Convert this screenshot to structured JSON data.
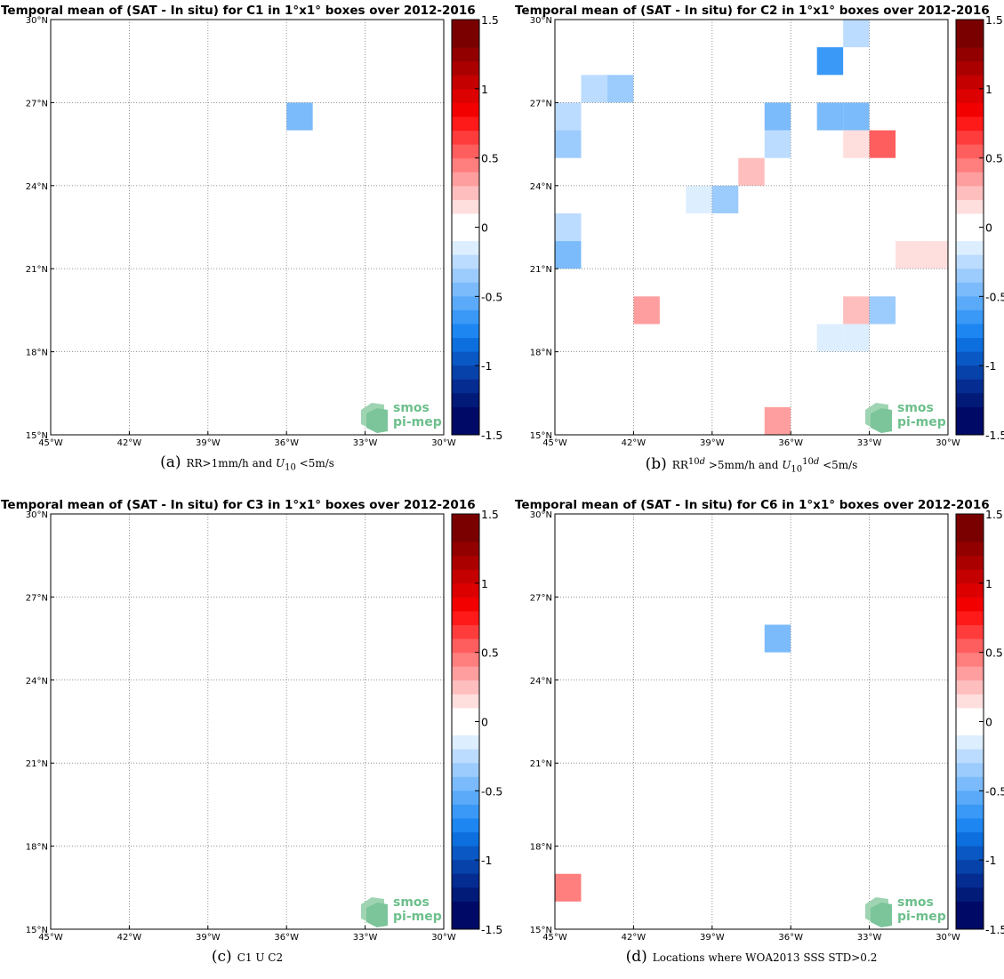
{
  "chart_data": [
    {
      "type": "heatmap",
      "id": "a",
      "title": "Temporal mean of (SAT - In situ) for C1 in 1°x1° boxes over 2012-2016",
      "caption_letter": "(a)",
      "caption_html": "RR&gt;1mm/h and <i>U</i><sub>10</sub> &lt;5m/s",
      "xlim": [
        -45,
        -30
      ],
      "ylim": [
        15,
        30
      ],
      "xtick_values": [
        -45,
        -42,
        -39,
        -36,
        -33,
        -30
      ],
      "xtick_labels": [
        "45°W",
        "42°W",
        "39°W",
        "36°W",
        "33°W",
        "30°W"
      ],
      "ytick_values": [
        15,
        18,
        21,
        24,
        27,
        30
      ],
      "ytick_labels": [
        "15°N",
        "18°N",
        "21°N",
        "24°N",
        "27°N",
        "30°N"
      ],
      "grid": true,
      "colorbar": {
        "range": [
          -1.5,
          1.5
        ],
        "tick_values": [
          1.5,
          1,
          0.5,
          0,
          -0.5,
          -1,
          -1.5
        ],
        "tick_labels": [
          "1.5",
          "1",
          "0.5",
          "0",
          "-0.5",
          "-1",
          "-1.5"
        ]
      },
      "cells": [
        {
          "lon": -36,
          "lat": 26,
          "value": -0.4
        }
      ],
      "logo": [
        "smos",
        "pi-mep"
      ]
    },
    {
      "type": "heatmap",
      "id": "b",
      "title": "Temporal mean of (SAT - In situ) for C2 in 1°x1° boxes over 2012-2016",
      "caption_letter": "(b)",
      "caption_html": "RR<sup>10<i>d</i></sup> &gt;5mm/h and <i>U</i><sub>10</sub><sup>10<i>d</i></sup> &lt;5m/s",
      "xlim": [
        -45,
        -30
      ],
      "ylim": [
        15,
        30
      ],
      "xtick_values": [
        -45,
        -42,
        -39,
        -36,
        -33,
        -30
      ],
      "xtick_labels": [
        "45°W",
        "42°W",
        "39°W",
        "36°W",
        "33°W",
        "30°W"
      ],
      "ytick_values": [
        15,
        18,
        21,
        24,
        27,
        30
      ],
      "ytick_labels": [
        "15°N",
        "18°N",
        "21°N",
        "24°N",
        "27°N",
        "30°N"
      ],
      "grid": true,
      "colorbar": {
        "range": [
          -1.5,
          1.5
        ],
        "tick_values": [
          1.5,
          1,
          0.5,
          0,
          -0.5,
          -1,
          -1.5
        ],
        "tick_labels": [
          "1.5",
          "1",
          "0.5",
          "0",
          "-0.5",
          "-1",
          "-1.5"
        ]
      },
      "cells": [
        {
          "lon": -34,
          "lat": 29,
          "value": -0.15
        },
        {
          "lon": -35,
          "lat": 28,
          "value": -0.55
        },
        {
          "lon": -44,
          "lat": 27,
          "value": -0.15
        },
        {
          "lon": -43,
          "lat": 27,
          "value": -0.25
        },
        {
          "lon": -45,
          "lat": 26,
          "value": -0.2
        },
        {
          "lon": -37,
          "lat": 26,
          "value": -0.35
        },
        {
          "lon": -35,
          "lat": 26,
          "value": -0.35
        },
        {
          "lon": -34,
          "lat": 26,
          "value": -0.35
        },
        {
          "lon": -45,
          "lat": 25,
          "value": -0.3
        },
        {
          "lon": -37,
          "lat": 25,
          "value": -0.2
        },
        {
          "lon": -34,
          "lat": 25,
          "value": 0.1
        },
        {
          "lon": -33,
          "lat": 25,
          "value": 0.45
        },
        {
          "lon": -38,
          "lat": 24,
          "value": 0.15
        },
        {
          "lon": -40,
          "lat": 23,
          "value": -0.1
        },
        {
          "lon": -39,
          "lat": 23,
          "value": -0.25
        },
        {
          "lon": -45,
          "lat": 22,
          "value": -0.15
        },
        {
          "lon": -45,
          "lat": 21,
          "value": -0.35
        },
        {
          "lon": -32,
          "lat": 21,
          "value": 0.1
        },
        {
          "lon": -31,
          "lat": 21,
          "value": 0.1
        },
        {
          "lon": -42,
          "lat": 19,
          "value": 0.3
        },
        {
          "lon": -34,
          "lat": 19,
          "value": 0.15
        },
        {
          "lon": -33,
          "lat": 19,
          "value": -0.3
        },
        {
          "lon": -35,
          "lat": 18,
          "value": -0.1
        },
        {
          "lon": -34,
          "lat": 18,
          "value": -0.1
        },
        {
          "lon": -37,
          "lat": 15,
          "value": 0.25
        }
      ],
      "logo": [
        "smos",
        "pi-mep"
      ]
    },
    {
      "type": "heatmap",
      "id": "c",
      "title": "Temporal mean of (SAT - In situ) for C3 in 1°x1° boxes over 2012-2016",
      "caption_letter": "(c)",
      "caption_html": "C1 U C2",
      "xlim": [
        -45,
        -30
      ],
      "ylim": [
        15,
        30
      ],
      "xtick_values": [
        -45,
        -42,
        -39,
        -36,
        -33,
        -30
      ],
      "xtick_labels": [
        "45°W",
        "42°W",
        "39°W",
        "36°W",
        "33°W",
        "30°W"
      ],
      "ytick_values": [
        15,
        18,
        21,
        24,
        27,
        30
      ],
      "ytick_labels": [
        "15°N",
        "18°N",
        "21°N",
        "24°N",
        "27°N",
        "30°N"
      ],
      "grid": true,
      "colorbar": {
        "range": [
          -1.5,
          1.5
        ],
        "tick_values": [
          1.5,
          1,
          0.5,
          0,
          -0.5,
          -1,
          -1.5
        ],
        "tick_labels": [
          "1.5",
          "1",
          "0.5",
          "0",
          "-0.5",
          "-1",
          "-1.5"
        ]
      },
      "cells": [],
      "logo": [
        "smos",
        "pi-mep"
      ]
    },
    {
      "type": "heatmap",
      "id": "d",
      "title": "Temporal mean of (SAT - In situ) for C6 in 1°x1° boxes over 2012-2016",
      "caption_letter": "(d)",
      "caption_html": "Locations where WOA2013 SSS STD&gt;0.2",
      "xlim": [
        -45,
        -30
      ],
      "ylim": [
        15,
        30
      ],
      "xtick_values": [
        -45,
        -42,
        -39,
        -36,
        -33,
        -30
      ],
      "xtick_labels": [
        "45°W",
        "42°W",
        "39°W",
        "36°W",
        "33°W",
        "30°W"
      ],
      "ytick_values": [
        15,
        18,
        21,
        24,
        27,
        30
      ],
      "ytick_labels": [
        "15°N",
        "18°N",
        "21°N",
        "24°N",
        "27°N",
        "30°N"
      ],
      "grid": true,
      "colorbar": {
        "range": [
          -1.5,
          1.5
        ],
        "tick_values": [
          1.5,
          1,
          0.5,
          0,
          -0.5,
          -1,
          -1.5
        ],
        "tick_labels": [
          "1.5",
          "1",
          "0.5",
          "0",
          "-0.5",
          "-1",
          "-1.5"
        ]
      },
      "cells": [
        {
          "lon": -37,
          "lat": 25,
          "value": -0.35
        },
        {
          "lon": -45,
          "lat": 16,
          "value": 0.35
        }
      ],
      "logo": [
        "smos",
        "pi-mep"
      ]
    }
  ],
  "colors": {
    "negative_ramp": [
      "#ffffff",
      "#ddeeff",
      "#bcdcff",
      "#9ccbfd",
      "#7bbbfb",
      "#5aaaf9",
      "#3a99f7",
      "#1e86f0",
      "#0d6fdd",
      "#0a58c4",
      "#0742aa",
      "#052c90",
      "#021a78",
      "#000a66"
    ],
    "positive_ramp": [
      "#ffffff",
      "#ffdede",
      "#ffbebe",
      "#ff9e9e",
      "#ff7e7e",
      "#ff5e5e",
      "#ff3c3c",
      "#ff1a1a",
      "#f20000",
      "#dc0000",
      "#c40000",
      "#ab0000",
      "#920000",
      "#7a0000"
    ],
    "grid": "#888888"
  }
}
